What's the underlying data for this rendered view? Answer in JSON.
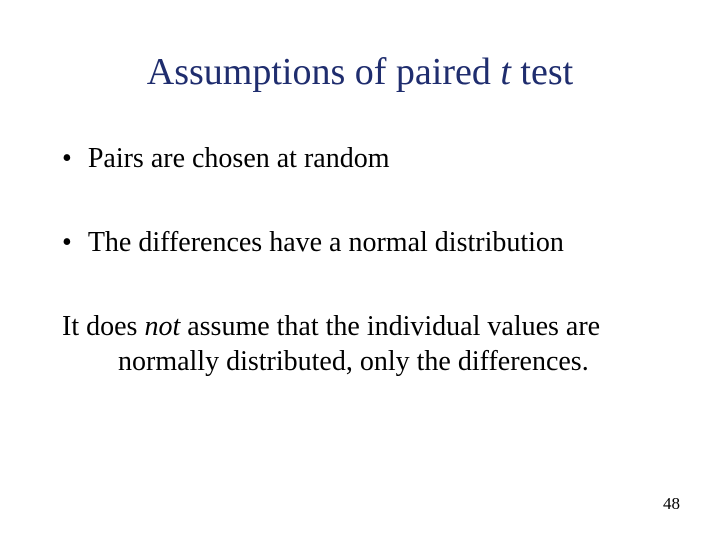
{
  "title": {
    "prefix": "Assumptions of paired ",
    "italic": "t",
    "suffix": " test"
  },
  "bullets": [
    "Pairs are chosen at random",
    "The differences have a normal distribution"
  ],
  "paragraph": {
    "prefix": "It does ",
    "italic": "not",
    "suffix": " assume that the individual values are normally distributed, only the differences."
  },
  "page_number": "48",
  "colors": {
    "title_color": "#1f2d6e",
    "text_color": "#000000",
    "background": "#ffffff"
  },
  "fonts": {
    "title_size": 38,
    "body_size": 28,
    "page_number_size": 17,
    "family": "Times New Roman"
  }
}
